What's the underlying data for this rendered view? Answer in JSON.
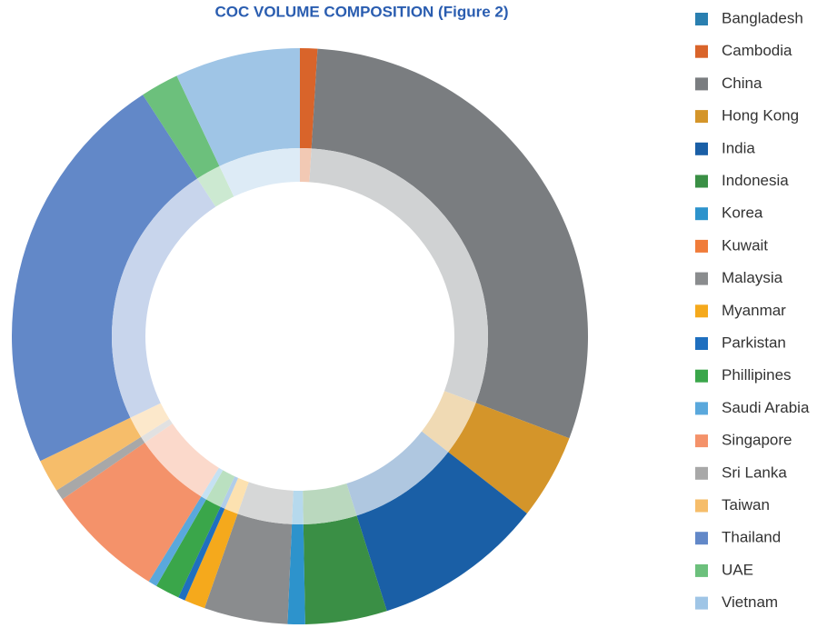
{
  "chart_data": {
    "type": "donut",
    "title": "COC VOLUME COMPOSITION (Figure 2)",
    "categories": [
      "Bangladesh",
      "Cambodia",
      "China",
      "Hong Kong",
      "India",
      "Indonesia",
      "Korea",
      "Kuwait",
      "Malaysia",
      "Myanmar",
      "Parkistan",
      "Phillipines",
      "Saudi Arabia",
      "Singapore",
      "Sri Lanka",
      "Taiwan",
      "Thailand",
      "UAE",
      "Vietnam"
    ],
    "values": [
      0,
      1,
      30.5,
      4.9,
      9.8,
      4.7,
      1,
      0,
      4.8,
      1.2,
      0.4,
      1.4,
      0.5,
      6.8,
      0.6,
      1.9,
      23.5,
      2.2,
      7.2
    ],
    "colors": [
      "#2a7fb0",
      "#d9642a",
      "#7a7d80",
      "#d4952a",
      "#1a5fa6",
      "#3a8f45",
      "#2d93cc",
      "#f07c3a",
      "#8a8c8e",
      "#f5a91c",
      "#1f6fbf",
      "#3aa64a",
      "#5aa8dc",
      "#f4926a",
      "#a8a8a8",
      "#f6bd6a",
      "#6288c8",
      "#6cc07c",
      "#9fc5e6"
    ],
    "legend": "right"
  }
}
